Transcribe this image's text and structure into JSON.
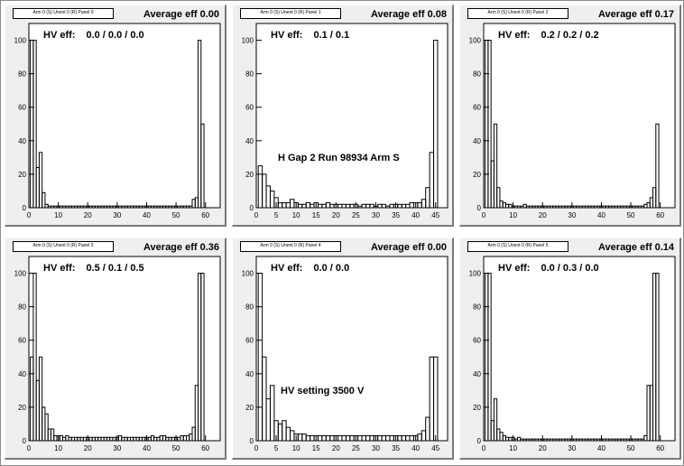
{
  "chart_data": [
    {
      "type": "bar",
      "box_title": "Arm 0 (S) Unent 0 (R) Panel 0",
      "average": "Average eff 0.00",
      "hv_label": "HV eff:",
      "hv_values": "0.0 / 0.0 / 0.0",
      "annotation": "",
      "xlim": [
        0,
        65
      ],
      "ylim": [
        0,
        110
      ],
      "xticks": [
        0,
        10,
        20,
        30,
        40,
        50,
        60
      ],
      "yticks": [
        0,
        20,
        40,
        60,
        80,
        100
      ],
      "bins": [
        1,
        2,
        3,
        4,
        5,
        6,
        7,
        8,
        9,
        10,
        11,
        12,
        13,
        14,
        15,
        16,
        17,
        18,
        19,
        20,
        21,
        22,
        23,
        24,
        25,
        26,
        27,
        28,
        29,
        30,
        31,
        32,
        33,
        34,
        35,
        36,
        37,
        38,
        39,
        40,
        41,
        42,
        43,
        44,
        45,
        46,
        47,
        48,
        49,
        50,
        51,
        52,
        53,
        54,
        55,
        56,
        57,
        58,
        59
      ],
      "values": [
        100,
        100,
        24,
        33,
        9,
        2,
        1,
        1,
        1,
        1,
        1,
        1,
        1,
        1,
        1,
        1,
        1,
        1,
        1,
        1,
        1,
        1,
        1,
        1,
        1,
        1,
        1,
        1,
        1,
        1,
        1,
        1,
        1,
        1,
        1,
        1,
        1,
        1,
        1,
        1,
        1,
        1,
        1,
        1,
        1,
        1,
        1,
        1,
        1,
        1,
        1,
        1,
        1,
        1,
        1,
        5,
        6,
        100,
        50
      ]
    },
    {
      "type": "bar",
      "box_title": "Arm 0 (S) Unent 0 (R) Panel 1",
      "average": "Average eff 0.08",
      "hv_label": "HV eff:",
      "hv_values": "0.1 / 0.1",
      "annotation": "H Gap 2 Run 98934 Arm S",
      "xlim": [
        0,
        48
      ],
      "ylim": [
        0,
        110
      ],
      "xticks": [
        0,
        5,
        10,
        15,
        20,
        25,
        30,
        35,
        40,
        45
      ],
      "yticks": [
        0,
        20,
        40,
        60,
        80,
        100
      ],
      "bins": [
        1,
        2,
        3,
        4,
        5,
        6,
        7,
        8,
        9,
        10,
        11,
        12,
        13,
        14,
        15,
        16,
        17,
        18,
        19,
        20,
        21,
        22,
        23,
        24,
        25,
        26,
        27,
        28,
        29,
        30,
        31,
        32,
        33,
        34,
        35,
        36,
        37,
        38,
        39,
        40,
        41,
        42,
        43,
        44,
        45
      ],
      "values": [
        25,
        20,
        13,
        10,
        6,
        3,
        3,
        3,
        5,
        3,
        2,
        2,
        3,
        2,
        3,
        2,
        2,
        3,
        2,
        2,
        2,
        2,
        2,
        2,
        2,
        1,
        2,
        2,
        2,
        1,
        2,
        2,
        1,
        2,
        2,
        2,
        2,
        2,
        3,
        3,
        3,
        5,
        12,
        33,
        100
      ]
    },
    {
      "type": "bar",
      "box_title": "Arm 0 (S) Unent 0 (R) Panel 2",
      "average": "Average eff 0.17",
      "hv_label": "HV eff:",
      "hv_values": "0.2 / 0.2 / 0.2",
      "annotation": "",
      "xlim": [
        0,
        65
      ],
      "ylim": [
        0,
        110
      ],
      "xticks": [
        0,
        10,
        20,
        30,
        40,
        50,
        60
      ],
      "yticks": [
        0,
        20,
        40,
        60,
        80,
        100
      ],
      "bins": [
        1,
        2,
        3,
        4,
        5,
        6,
        7,
        8,
        9,
        10,
        11,
        12,
        13,
        14,
        15,
        16,
        17,
        18,
        19,
        20,
        21,
        22,
        23,
        24,
        25,
        26,
        27,
        28,
        29,
        30,
        31,
        32,
        33,
        34,
        35,
        36,
        37,
        38,
        39,
        40,
        41,
        42,
        43,
        44,
        45,
        46,
        47,
        48,
        49,
        50,
        51,
        52,
        53,
        54,
        55,
        56,
        57,
        58,
        59
      ],
      "values": [
        100,
        100,
        28,
        50,
        12,
        4,
        3,
        2,
        2,
        1,
        1,
        1,
        1,
        2,
        1,
        1,
        1,
        1,
        1,
        1,
        1,
        1,
        1,
        1,
        1,
        1,
        1,
        1,
        1,
        1,
        1,
        1,
        1,
        1,
        1,
        1,
        1,
        1,
        1,
        1,
        1,
        1,
        1,
        1,
        1,
        1,
        1,
        1,
        1,
        1,
        1,
        1,
        1,
        1,
        2,
        3,
        6,
        12,
        50
      ]
    },
    {
      "type": "bar",
      "box_title": "Arm 0 (S) Unent 0 (R) Panel 3",
      "average": "Average eff 0.36",
      "hv_label": "HV eff:",
      "hv_values": "0.5 / 0.1 / 0.5",
      "annotation": "",
      "xlim": [
        0,
        65
      ],
      "ylim": [
        0,
        110
      ],
      "xticks": [
        0,
        10,
        20,
        30,
        40,
        50,
        60
      ],
      "yticks": [
        0,
        20,
        40,
        60,
        80,
        100
      ],
      "bins": [
        1,
        2,
        3,
        4,
        5,
        6,
        7,
        8,
        9,
        10,
        11,
        12,
        13,
        14,
        15,
        16,
        17,
        18,
        19,
        20,
        21,
        22,
        23,
        24,
        25,
        26,
        27,
        28,
        29,
        30,
        31,
        32,
        33,
        34,
        35,
        36,
        37,
        38,
        39,
        40,
        41,
        42,
        43,
        44,
        45,
        46,
        47,
        48,
        49,
        50,
        51,
        52,
        53,
        54,
        55,
        56,
        57,
        58,
        59
      ],
      "values": [
        50,
        100,
        36,
        50,
        20,
        16,
        7,
        7,
        3,
        3,
        3,
        2,
        3,
        2,
        2,
        2,
        2,
        2,
        2,
        2,
        2,
        2,
        2,
        2,
        2,
        2,
        2,
        2,
        2,
        2,
        3,
        2,
        2,
        2,
        2,
        2,
        2,
        2,
        2,
        2,
        2,
        3,
        2,
        2,
        3,
        3,
        2,
        2,
        2,
        2,
        2,
        3,
        3,
        3,
        4,
        8,
        33,
        100,
        100
      ]
    },
    {
      "type": "bar",
      "box_title": "Arm 0 (S) Unent 0 (R) Panel 4",
      "average": "Average eff 0.00",
      "hv_label": "HV eff:",
      "hv_values": "0.0 / 0.0",
      "annotation": "HV setting 3500 V",
      "xlim": [
        0,
        48
      ],
      "ylim": [
        0,
        110
      ],
      "xticks": [
        0,
        5,
        10,
        15,
        20,
        25,
        30,
        35,
        40,
        45
      ],
      "yticks": [
        0,
        20,
        40,
        60,
        80,
        100
      ],
      "bins": [
        1,
        2,
        3,
        4,
        5,
        6,
        7,
        8,
        9,
        10,
        11,
        12,
        13,
        14,
        15,
        16,
        17,
        18,
        19,
        20,
        21,
        22,
        23,
        24,
        25,
        26,
        27,
        28,
        29,
        30,
        31,
        32,
        33,
        34,
        35,
        36,
        37,
        38,
        39,
        40,
        41,
        42,
        43,
        44,
        45
      ],
      "values": [
        100,
        50,
        25,
        33,
        12,
        10,
        12,
        8,
        6,
        4,
        4,
        4,
        3,
        3,
        3,
        3,
        3,
        3,
        3,
        3,
        3,
        3,
        3,
        3,
        3,
        3,
        3,
        3,
        3,
        3,
        3,
        3,
        3,
        3,
        3,
        3,
        3,
        3,
        3,
        3,
        4,
        6,
        14,
        50,
        50
      ]
    },
    {
      "type": "bar",
      "box_title": "Arm 0 (S) Unent 0 (R) Panel 5",
      "average": "Average eff 0.14",
      "hv_label": "HV eff:",
      "hv_values": "0.0 / 0.3 / 0.0",
      "annotation": "",
      "xlim": [
        0,
        65
      ],
      "ylim": [
        0,
        110
      ],
      "xticks": [
        0,
        10,
        20,
        30,
        40,
        50,
        60
      ],
      "yticks": [
        0,
        20,
        40,
        60,
        80,
        100
      ],
      "bins": [
        1,
        2,
        3,
        4,
        5,
        6,
        7,
        8,
        9,
        10,
        11,
        12,
        13,
        14,
        15,
        16,
        17,
        18,
        19,
        20,
        21,
        22,
        23,
        24,
        25,
        26,
        27,
        28,
        29,
        30,
        31,
        32,
        33,
        34,
        35,
        36,
        37,
        38,
        39,
        40,
        41,
        42,
        43,
        44,
        45,
        46,
        47,
        48,
        49,
        50,
        51,
        52,
        53,
        54,
        55,
        56,
        57,
        58,
        59
      ],
      "values": [
        100,
        100,
        12,
        25,
        7,
        5,
        3,
        2,
        2,
        2,
        1,
        2,
        1,
        1,
        1,
        1,
        1,
        1,
        1,
        1,
        1,
        1,
        1,
        1,
        1,
        1,
        1,
        1,
        1,
        1,
        1,
        1,
        1,
        1,
        1,
        1,
        1,
        1,
        1,
        1,
        1,
        1,
        1,
        1,
        1,
        1,
        1,
        1,
        1,
        1,
        1,
        1,
        1,
        1,
        3,
        33,
        33,
        100,
        100
      ]
    }
  ]
}
